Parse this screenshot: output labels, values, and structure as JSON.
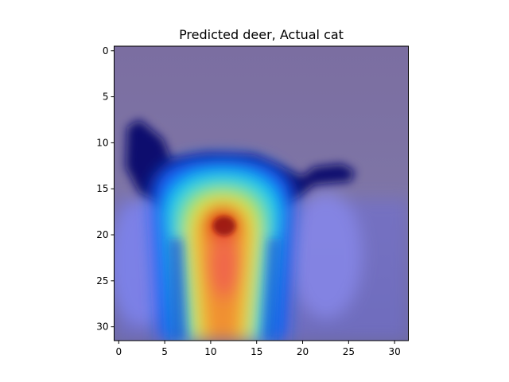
{
  "chart_data": {
    "type": "heatmap",
    "title": "Predicted deer, Actual cat",
    "xlabel": "",
    "ylabel": "",
    "xlim": [
      -0.5,
      31.5
    ],
    "ylim": [
      31.5,
      -0.5
    ],
    "xticks": [
      0,
      5,
      10,
      15,
      20,
      25,
      30
    ],
    "yticks": [
      0,
      5,
      10,
      15,
      20,
      25,
      30
    ],
    "grid": false,
    "image_size": [
      32,
      32
    ],
    "colormap": "jet",
    "description_values": {
      "background_color": "#7a6f9c",
      "cat_silhouette_color": "#0a0f6e"
    }
  }
}
